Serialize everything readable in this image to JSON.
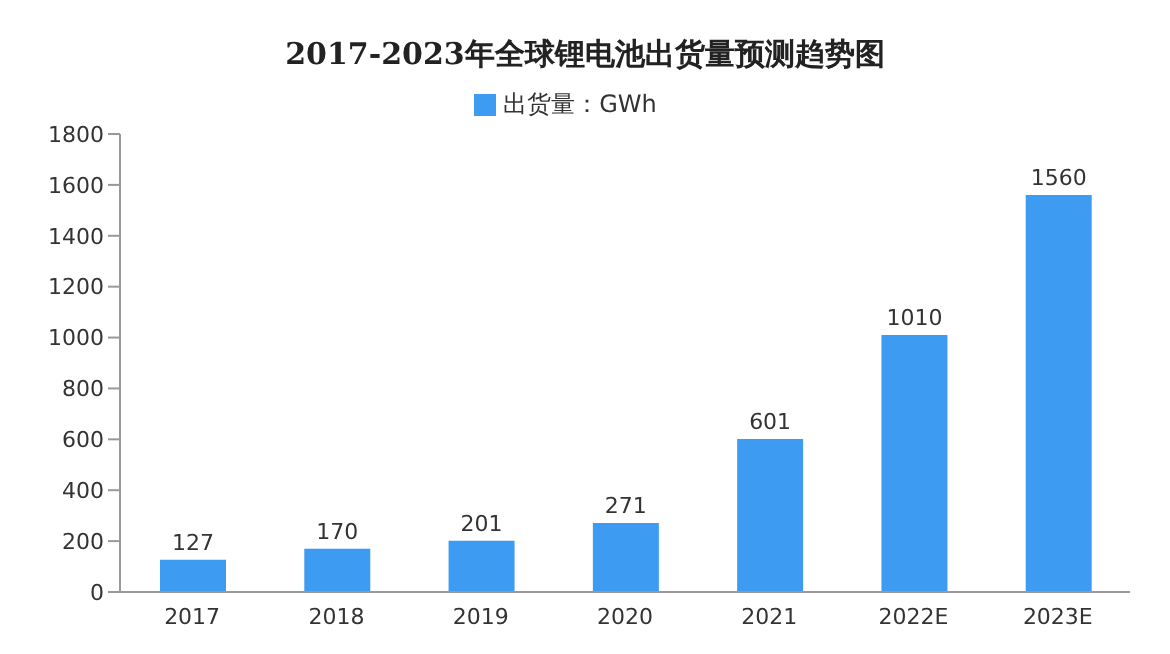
{
  "chart_data": {
    "type": "bar",
    "title": "2017-2023年全球锂电池出货量预测趋势图",
    "categories": [
      "2017",
      "2018",
      "2019",
      "2020",
      "2021",
      "2022E",
      "2023E"
    ],
    "series": [
      {
        "name": "出货量：GWh",
        "color": "#3d9cf2",
        "values": [
          127,
          170,
          201,
          271,
          601,
          1010,
          1560
        ]
      }
    ],
    "ylim": [
      0,
      1800
    ],
    "yticks": [
      0,
      200,
      400,
      600,
      800,
      1000,
      1200,
      1400,
      1600,
      1800
    ],
    "data_labels": true,
    "legend": "top",
    "grid": false
  }
}
